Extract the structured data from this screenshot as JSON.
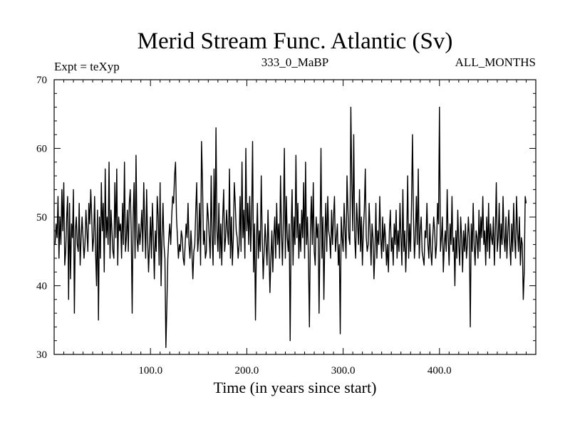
{
  "chart_data": {
    "type": "line",
    "title": "Merid Stream Func. Atlantic (Sv)",
    "subtitle_left": "Expt = teXyp",
    "subtitle_center": "333_0_MaBP",
    "subtitle_right": "ALL_MONTHS",
    "xlabel": "Time (in years since start)",
    "ylabel": "",
    "xlim": [
      0,
      500
    ],
    "ylim": [
      30,
      70
    ],
    "x_ticks_major": [
      100,
      200,
      300,
      400
    ],
    "x_tick_labels": [
      "100.0",
      "200.0",
      "300.0",
      "400.0"
    ],
    "y_ticks_major": [
      30,
      40,
      50,
      60,
      70
    ],
    "y_tick_labels": [
      "30",
      "40",
      "50",
      "60",
      "70"
    ],
    "grid": false,
    "line_color": "#000000",
    "series": [
      {
        "x_start": 1,
        "x_step": 1,
        "values": [
          46,
          49,
          47,
          53,
          44,
          50,
          46,
          54,
          48,
          55,
          43,
          45,
          50,
          53,
          38,
          52,
          41,
          49,
          47,
          54,
          36,
          48,
          50,
          46,
          45,
          52,
          43,
          47,
          50,
          47,
          44,
          46,
          51,
          48,
          45,
          52,
          49,
          54,
          50,
          45,
          47,
          53,
          45,
          40,
          51,
          35,
          50,
          44,
          55,
          48,
          52,
          42,
          57,
          47,
          50,
          46,
          58,
          44,
          51,
          48,
          45,
          44,
          55,
          47,
          57,
          43,
          50,
          48,
          49,
          44,
          52,
          46,
          58,
          45,
          47,
          51,
          45,
          52,
          54,
          48,
          36,
          50,
          55,
          44,
          59,
          47,
          45,
          49,
          46,
          48,
          51,
          45,
          55,
          49,
          44,
          54,
          47,
          42,
          46,
          50,
          44,
          52,
          47,
          41,
          48,
          45,
          53,
          50,
          43,
          55,
          40,
          47,
          52,
          46,
          44,
          31,
          37,
          44,
          47,
          49,
          46,
          50,
          53,
          52,
          56,
          58,
          50,
          47,
          44,
          46,
          45,
          48,
          47,
          44,
          43,
          46,
          49,
          47,
          52,
          46,
          44,
          48,
          45,
          41,
          45,
          46,
          51,
          55,
          45,
          47,
          52,
          43,
          61,
          55,
          46,
          48,
          44,
          45,
          52,
          50,
          47,
          44,
          56,
          47,
          43,
          57,
          46,
          63,
          48,
          45,
          52,
          44,
          49,
          43,
          50,
          54,
          45,
          47,
          51,
          48,
          46,
          57,
          44,
          50,
          43,
          47,
          55,
          52,
          48,
          47,
          44,
          46,
          53,
          45,
          58,
          47,
          51,
          44,
          60,
          48,
          52,
          46,
          53,
          45,
          50,
          61,
          42,
          49,
          35,
          46,
          52,
          44,
          48,
          45,
          56,
          47,
          41,
          45,
          49,
          46,
          43,
          51,
          45,
          39,
          44,
          48,
          42,
          47,
          50,
          44,
          52,
          46,
          49,
          44,
          56,
          48,
          43,
          50,
          60,
          44,
          53,
          47,
          45,
          49,
          32,
          48,
          54,
          43,
          50,
          46,
          59,
          47,
          52,
          44,
          49,
          45,
          51,
          47,
          55,
          44,
          58,
          46,
          50,
          44,
          34,
          48,
          53,
          46,
          55,
          45,
          43,
          50,
          47,
          49,
          36,
          47,
          60,
          44,
          50,
          38,
          47,
          52,
          45,
          53,
          48,
          47,
          44,
          51,
          46,
          50,
          53,
          45,
          47,
          49,
          43,
          46,
          33,
          50,
          47,
          45,
          52,
          48,
          44,
          56,
          51,
          47,
          46,
          66,
          55,
          48,
          62,
          47,
          44,
          52,
          49,
          46,
          54,
          45,
          50,
          43,
          48,
          51,
          57,
          47,
          45,
          46,
          52,
          48,
          43,
          49,
          47,
          41,
          45,
          52,
          44,
          48,
          46,
          53,
          47,
          44,
          50,
          45,
          49,
          47,
          43,
          46,
          42,
          48,
          51,
          45,
          47,
          43,
          49,
          46,
          51,
          44,
          48,
          45,
          52,
          47,
          43,
          54,
          45,
          48,
          42,
          47,
          56,
          44,
          49,
          45,
          52,
          62,
          50,
          44,
          47,
          53,
          46,
          57,
          44,
          48,
          50,
          45,
          44,
          43,
          48,
          47,
          52,
          46,
          44,
          49,
          45,
          43,
          47,
          50,
          48,
          44,
          46,
          52,
          49,
          66,
          45,
          47,
          50,
          42,
          46,
          48,
          45,
          54,
          47,
          43,
          49,
          46,
          53,
          45,
          47,
          40,
          48,
          44,
          51,
          46,
          43,
          50,
          47,
          42,
          48,
          45,
          49,
          44,
          46,
          50,
          47,
          34,
          49,
          45,
          52,
          46,
          43,
          48,
          47,
          44,
          51,
          45,
          50,
          47,
          53,
          46,
          48,
          43,
          50,
          45,
          52,
          44,
          49,
          47,
          46,
          50,
          43,
          48,
          55,
          45,
          47,
          52,
          44,
          49,
          46,
          53,
          47,
          45,
          50,
          44,
          48,
          51,
          46,
          43,
          49,
          45,
          52,
          47,
          44,
          53,
          48,
          45,
          50,
          43,
          47,
          46,
          38,
          42,
          53,
          52
        ]
      }
    ]
  }
}
